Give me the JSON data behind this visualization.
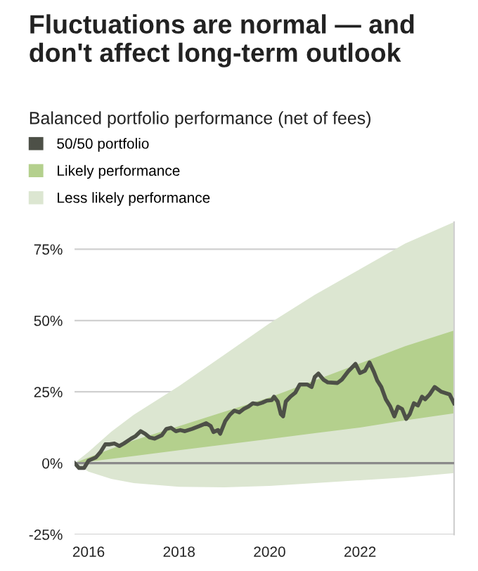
{
  "chart_data": {
    "type": "line",
    "title": "Fluctuations are normal — and don't affect long-term outlook",
    "subtitle": "Balanced portfolio performance (net of fees)",
    "x": [
      2015.69,
      2015.79,
      2015.9,
      2016.0,
      2016.16,
      2016.26,
      2016.37,
      2016.47,
      2016.57,
      2016.68,
      2016.78,
      2016.94,
      2017.04,
      2017.15,
      2017.25,
      2017.35,
      2017.46,
      2017.62,
      2017.72,
      2017.82,
      2017.93,
      2018.03,
      2018.13,
      2018.29,
      2018.45,
      2018.6,
      2018.7,
      2018.76,
      2018.86,
      2018.91,
      2019.02,
      2019.12,
      2019.22,
      2019.33,
      2019.43,
      2019.53,
      2019.63,
      2019.74,
      2019.84,
      2019.94,
      2020.05,
      2020.1,
      2020.18,
      2020.25,
      2020.3,
      2020.36,
      2020.46,
      2020.57,
      2020.67,
      2020.83,
      2020.93,
      2021.0,
      2021.08,
      2021.19,
      2021.29,
      2021.5,
      2021.6,
      2021.74,
      2021.9,
      2022.0,
      2022.11,
      2022.21,
      2022.31,
      2022.38,
      2022.47,
      2022.57,
      2022.67,
      2022.76,
      2022.84,
      2022.93,
      2023.02,
      2023.1,
      2023.19,
      2023.28,
      2023.37,
      2023.44,
      2023.54,
      2023.65,
      2023.8,
      2023.98,
      2024.08
    ],
    "series": [
      {
        "name": "50/50 portfolio",
        "type": "line",
        "color": "#4d5047",
        "values": [
          0,
          -1.7,
          -1.7,
          0.9,
          2,
          3.8,
          6.6,
          6.6,
          6.9,
          6,
          6.9,
          8.6,
          9.5,
          11.2,
          10.3,
          9,
          8.6,
          9.8,
          12,
          12.4,
          11.2,
          11.6,
          11.2,
          12,
          13,
          14,
          13,
          10.9,
          11.6,
          10.3,
          14.7,
          16.9,
          18.4,
          17.8,
          19,
          19.8,
          21,
          20.7,
          21.2,
          21.9,
          22.1,
          23.3,
          21.6,
          17.2,
          16.4,
          21.6,
          23.3,
          24.7,
          27.6,
          27.6,
          26.7,
          30.2,
          31.4,
          29.3,
          28.3,
          28.1,
          29.3,
          32.2,
          34.8,
          31.6,
          32.4,
          35.3,
          31.9,
          29,
          26.7,
          22.4,
          19.8,
          16.4,
          19.8,
          19,
          15.5,
          17.2,
          21,
          20.2,
          23.3,
          22.4,
          24.1,
          26.7,
          25,
          24.1,
          21
        ]
      },
      {
        "name": "Likely performance",
        "color": "#b4d08d",
        "x": [
          2015.69,
          2016,
          2016.5,
          2017,
          2018,
          2019,
          2020,
          2021,
          2022,
          2023,
          2024.08
        ],
        "values": [
          null,
          null,
          null,
          null,
          null,
          null,
          null,
          null,
          null,
          null,
          null
        ],
        "lower": [
          0,
          0.5,
          1.5,
          2.5,
          4.5,
          6.5,
          8.5,
          10.5,
          12.5,
          15,
          17.5
        ],
        "upper": [
          0,
          2,
          5,
          8,
          13,
          18,
          23,
          29,
          35,
          41,
          46.5
        ]
      },
      {
        "name": "Less likely performance",
        "color": "#dce6d1",
        "x": [
          2015.69,
          2016,
          2016.5,
          2017,
          2018,
          2019,
          2020,
          2021,
          2022,
          2023,
          2024.08
        ],
        "values": [
          null,
          null,
          null,
          null,
          null,
          null,
          null,
          null,
          null,
          null,
          null
        ],
        "lower": [
          0,
          -3,
          -5.5,
          -7,
          -8.3,
          -8.5,
          -8,
          -7,
          -6,
          -5,
          -3.5
        ],
        "upper": [
          0,
          4,
          11,
          17,
          27,
          38,
          49,
          59,
          68,
          77,
          84.5
        ]
      }
    ],
    "xlim": [
      2015.69,
      2024.08
    ],
    "xticks": [
      {
        "value": 2016,
        "label": "2016"
      },
      {
        "value": 2018,
        "label": "2018"
      },
      {
        "value": 2020,
        "label": "2020"
      },
      {
        "value": 2022,
        "label": "2022"
      }
    ],
    "ylim": [
      -25,
      84.5
    ],
    "yticks": [
      {
        "value": -25,
        "label": "-25%"
      },
      {
        "value": 0,
        "label": "0%"
      },
      {
        "value": 25,
        "label": "25%"
      },
      {
        "value": 50,
        "label": "50%"
      },
      {
        "value": 75,
        "label": "75%"
      }
    ],
    "ref_lines": [
      {
        "axis": "y",
        "value": 0,
        "color": "#8a8a8a"
      }
    ],
    "grid": "y",
    "legend": "top left",
    "line_style": "solid",
    "marker": "none"
  }
}
